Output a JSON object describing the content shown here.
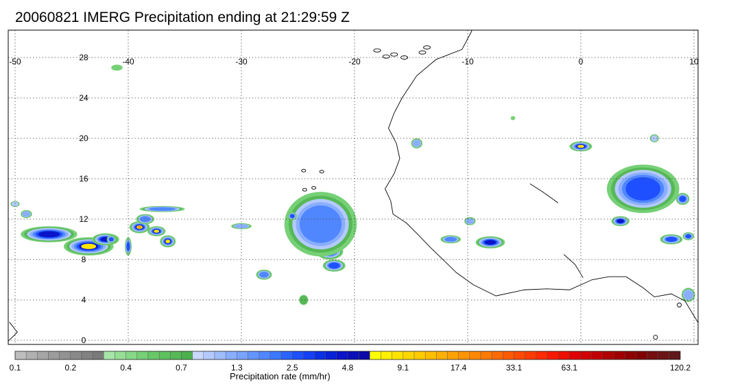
{
  "title": "20060821 IMERG Precipitation ending at 21:29:59 Z",
  "map": {
    "lon_range": [
      -50,
      10
    ],
    "lat_range": [
      -1,
      32
    ],
    "lon_ticks": [
      "-50",
      "-40",
      "-30",
      "-20",
      "-10",
      "0",
      "10"
    ],
    "lat_ticks": [
      "0",
      "4",
      "8",
      "12",
      "16",
      "20",
      "24",
      "28"
    ],
    "gridlines": "dotted",
    "coastline_color": "#000000"
  },
  "colorbar": {
    "label": "Precipitation rate (mm/hr)",
    "tick_labels": [
      "0.1",
      "0.2",
      "0.4",
      "0.7",
      "1.3",
      "2.5",
      "4.8",
      "9.1",
      "17.4",
      "33.1",
      "63.1",
      "120.2"
    ],
    "bins_per_tick": 5,
    "colors": [
      "#bdbdbd",
      "#b0b0b0",
      "#a6a6a6",
      "#9c9c9c",
      "#939393",
      "#8a8a8a",
      "#828282",
      "#7a7a7a",
      "#a8e6a8",
      "#96df96",
      "#86d886",
      "#76d076",
      "#68c868",
      "#5ec05e",
      "#56b856",
      "#4db04d",
      "#c8d8ff",
      "#b4caff",
      "#9fbcff",
      "#8aaeff",
      "#78a3ff",
      "#6495ff",
      "#5087ff",
      "#3c78ff",
      "#2a64ff",
      "#1e50ff",
      "#1440f5",
      "#0a30e6",
      "#0820d8",
      "#0a14c8",
      "#0a0fb8",
      "#0a0aa8",
      "#ffff00",
      "#fff000",
      "#ffe400",
      "#ffd700",
      "#ffca00",
      "#ffbe00",
      "#ffb000",
      "#ffa200",
      "#ff9400",
      "#ff8800",
      "#ff7a00",
      "#ff6a00",
      "#ff5a00",
      "#ff4a00",
      "#ff3a00",
      "#ff2a00",
      "#f81a00",
      "#ee1000",
      "#e00000",
      "#d00000",
      "#c00000",
      "#b00000",
      "#a00000",
      "#900000",
      "#800000",
      "#741010",
      "#6a1414",
      "#601818"
    ]
  },
  "precip_cells": [
    {
      "lon": -47,
      "lat": 10.5,
      "rlon": 2.5,
      "rlat": 0.8,
      "peak": 5.5
    },
    {
      "lon": -43.5,
      "lat": 9.3,
      "rlon": 2.2,
      "rlat": 0.9,
      "peak": 6.5
    },
    {
      "lon": -42.0,
      "lat": 10.0,
      "rlon": 1.2,
      "rlat": 0.6,
      "peak": 5.0
    },
    {
      "lon": -39.0,
      "lat": 11.2,
      "rlon": 0.9,
      "rlat": 0.6,
      "peak": 6.8
    },
    {
      "lon": -37.5,
      "lat": 10.8,
      "rlon": 0.8,
      "rlat": 0.5,
      "peak": 6.2
    },
    {
      "lon": -36.5,
      "lat": 9.8,
      "rlon": 0.7,
      "rlat": 0.6,
      "peak": 5.8
    },
    {
      "lon": -41.5,
      "lat": 10.0,
      "rlon": 0.4,
      "rlat": 0.4,
      "peak": 4.0
    },
    {
      "lon": -40.0,
      "lat": 9.3,
      "rlon": 0.3,
      "rlat": 0.9,
      "peak": 4.2
    },
    {
      "lon": -37.0,
      "lat": 13.0,
      "rlon": 2.0,
      "rlat": 0.3,
      "peak": 3.5
    },
    {
      "lon": -49.0,
      "lat": 12.5,
      "rlon": 0.5,
      "rlat": 0.4,
      "peak": 2.8
    },
    {
      "lon": -38.5,
      "lat": 12.0,
      "rlon": 0.8,
      "rlat": 0.5,
      "peak": 3.6
    },
    {
      "lon": -24.0,
      "lat": 13.0,
      "rlon": 1.1,
      "rlat": 1.3,
      "peak": 8.0
    },
    {
      "lon": -22.0,
      "lat": 13.2,
      "rlon": 0.9,
      "rlat": 0.9,
      "peak": 7.2
    },
    {
      "lon": -23.2,
      "lat": 10.3,
      "rlon": 2.3,
      "rlat": 0.9,
      "peak": 7.5
    },
    {
      "lon": -22.2,
      "lat": 8.8,
      "rlon": 1.2,
      "rlat": 0.8,
      "peak": 6.0
    },
    {
      "lon": -23.0,
      "lat": 11.5,
      "rlon": 3.2,
      "rlat": 3.2,
      "peak": 3.2
    },
    {
      "lon": -21.8,
      "lat": 7.4,
      "rlon": 1.0,
      "rlat": 0.6,
      "peak": 3.8
    },
    {
      "lon": -28.0,
      "lat": 6.5,
      "rlon": 0.7,
      "rlat": 0.5,
      "peak": 3.4
    },
    {
      "lon": -25.5,
      "lat": 12.3,
      "rlon": 0.4,
      "rlat": 0.4,
      "peak": 4.0
    },
    {
      "lon": -30.0,
      "lat": 11.3,
      "rlon": 0.9,
      "rlat": 0.3,
      "peak": 3.0
    },
    {
      "lon": -9.8,
      "lat": 11.8,
      "rlon": 0.5,
      "rlat": 0.4,
      "peak": 2.6
    },
    {
      "lon": -11.5,
      "lat": 10.0,
      "rlon": 0.9,
      "rlat": 0.4,
      "peak": 3.2
    },
    {
      "lon": -8.0,
      "lat": 9.7,
      "rlon": 1.3,
      "rlat": 0.6,
      "peak": 5.0
    },
    {
      "lon": -14.5,
      "lat": 19.5,
      "rlon": 0.5,
      "rlat": 0.5,
      "peak": 3.0
    },
    {
      "lon": 5.5,
      "lat": 14.5,
      "rlon": 2.0,
      "rlat": 1.8,
      "peak": 8.2
    },
    {
      "lon": 7.0,
      "lat": 14.0,
      "rlon": 1.0,
      "rlat": 0.8,
      "peak": 7.5
    },
    {
      "lon": 5.5,
      "lat": 15.0,
      "rlon": 3.2,
      "rlat": 2.4,
      "peak": 3.8
    },
    {
      "lon": 9.0,
      "lat": 14.0,
      "rlon": 0.6,
      "rlat": 0.6,
      "peak": 4.5
    },
    {
      "lon": 0.0,
      "lat": 19.2,
      "rlon": 1.0,
      "rlat": 0.5,
      "peak": 5.8
    },
    {
      "lon": 3.5,
      "lat": 11.8,
      "rlon": 0.8,
      "rlat": 0.5,
      "peak": 5.0
    },
    {
      "lon": 8.0,
      "lat": 10.0,
      "rlon": 1.0,
      "rlat": 0.5,
      "peak": 4.5
    },
    {
      "lon": 9.5,
      "lat": 10.3,
      "rlon": 0.5,
      "rlat": 0.4,
      "peak": 4.0
    },
    {
      "lon": 6.5,
      "lat": 20.0,
      "rlon": 0.4,
      "rlat": 0.4,
      "peak": 2.5
    },
    {
      "lon": 9.5,
      "lat": 4.5,
      "rlon": 0.6,
      "rlat": 0.7,
      "peak": 3.0
    },
    {
      "lon": -41.0,
      "lat": 27.0,
      "rlon": 0.5,
      "rlat": 0.3,
      "peak": 1.5
    },
    {
      "lon": -50.0,
      "lat": 13.5,
      "rlon": 0.4,
      "rlat": 0.3,
      "peak": 2.2
    },
    {
      "lon": -24.5,
      "lat": 4.0,
      "rlon": 0.4,
      "rlat": 0.5,
      "peak": 2.0
    },
    {
      "lon": -6.0,
      "lat": 22.0,
      "rlon": 0.2,
      "rlat": 0.2,
      "peak": 1.0
    }
  ]
}
